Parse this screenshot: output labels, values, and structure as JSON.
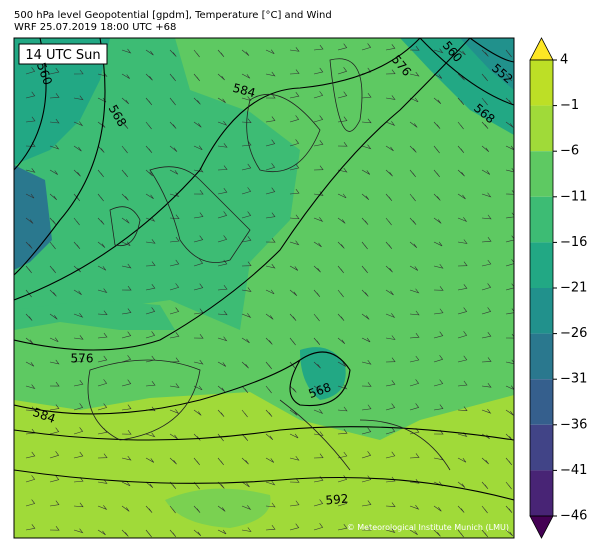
{
  "header": {
    "line1": "500 hPa level Geopotential [gpdm], Temperature [°C] and Wind",
    "line2": "WRF 25.07.2019 18:00 UTC +68"
  },
  "map": {
    "time_label": "14 UTC Sun",
    "contour_labels": [
      "560",
      "560",
      "552",
      "576",
      "584",
      "568",
      "568",
      "576",
      "568",
      "584",
      "592"
    ],
    "credit": "© Meteorological Institute Munich (LMU)"
  },
  "colorbar": {
    "ticks": [
      4,
      {
        "value": -1,
        "label": "−1"
      },
      {
        "value": -6,
        "label": "−6"
      },
      {
        "value": -11,
        "label": "−11"
      },
      {
        "value": -16,
        "label": "−16"
      },
      {
        "value": -21,
        "label": "−21"
      },
      {
        "value": -26,
        "label": "−26"
      },
      {
        "value": -31,
        "label": "−31"
      },
      {
        "value": -36,
        "label": "−36"
      },
      {
        "value": -41,
        "label": "−41"
      },
      {
        "value": -46,
        "label": "−46"
      }
    ],
    "colors": [
      "#fde725",
      "#bddf26",
      "#a0da39",
      "#5ec962",
      "#3dbc74",
      "#22a884",
      "#21918c",
      "#2a788e",
      "#355f8d",
      "#414487",
      "#482475",
      "#440154"
    ]
  }
}
